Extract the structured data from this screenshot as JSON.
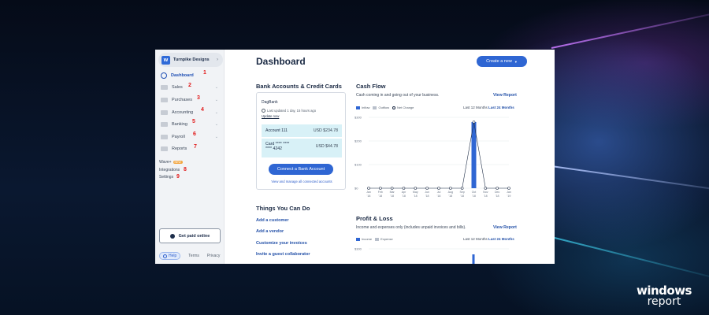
{
  "brand": {
    "line1": "windows",
    "line2": "report"
  },
  "sidebar": {
    "business_name": "Turnpike Designs",
    "items": [
      {
        "label": "Dashboard",
        "num": "1"
      },
      {
        "label": "Sales",
        "num": "2"
      },
      {
        "label": "Purchases",
        "num": "3"
      },
      {
        "label": "Accounting",
        "num": "4"
      },
      {
        "label": "Banking",
        "num": "5"
      },
      {
        "label": "Payroll",
        "num": "6"
      },
      {
        "label": "Reports",
        "num": "7"
      }
    ],
    "wave_plus": "Wave+",
    "wave_badge": "NEW",
    "integrations": "Integrations",
    "integrations_num": "8",
    "settings": "Settings",
    "settings_num": "9",
    "get_paid": "Get paid online",
    "help": "Help",
    "terms": "Terms",
    "privacy": "Privacy"
  },
  "main": {
    "title": "Dashboard",
    "create_new": "Create a new",
    "bank_section_title": "Bank Accounts & Credit Cards",
    "bank": {
      "name": "DagBank",
      "updated": "Last updated 1 day, 15 hours ago",
      "update_now": "Update now",
      "accounts": [
        {
          "name": "Account 111",
          "amount": "USD $234.78"
        },
        {
          "name": "Card **** ****",
          "name2": "**** 4242",
          "amount": "USD $44.78"
        }
      ],
      "connect": "Connect a Bank Account",
      "manage": "View and manage all connected accounts"
    },
    "todo_title": "Things You Can Do",
    "todo": [
      "Add a customer",
      "Add a vendor",
      "Customize your invoices",
      "Invite a guest collaborator"
    ],
    "cash_flow": {
      "title": "Cash Flow",
      "subtitle": "Cash coming in and going out of your business.",
      "view_report": "View Report",
      "range_a": "Last 12 Months",
      "range_b": "Last 24 Months",
      "legend": [
        "Inflow",
        "Outflow",
        "Net Change"
      ]
    },
    "profit_loss": {
      "title": "Profit & Loss",
      "subtitle": "Income and expenses only (includes unpaid invoices and bills).",
      "view_report": "View Report",
      "range_a": "Last 12 Months",
      "range_b": "Last 24 Months",
      "legend": [
        "Income",
        "Expense"
      ]
    }
  },
  "chart_data": [
    {
      "type": "bar",
      "title": "Cash Flow",
      "categories": [
        "Jan '18",
        "Feb '18",
        "Mar '18",
        "Apr '18",
        "May '18",
        "Jun '18",
        "Jul '18",
        "Aug '18",
        "Sep '18",
        "Oct '18",
        "Nov '18",
        "Dec '18",
        "Jan '19"
      ],
      "yticks": [
        "$300",
        "$200",
        "$100",
        "$0"
      ],
      "ylim": [
        0,
        300
      ],
      "series": [
        {
          "name": "Inflow",
          "values": [
            0,
            0,
            0,
            0,
            0,
            0,
            0,
            0,
            0,
            280,
            0,
            0,
            0
          ]
        },
        {
          "name": "Outflow",
          "values": [
            0,
            0,
            0,
            0,
            0,
            0,
            0,
            0,
            0,
            0,
            0,
            0,
            0
          ]
        },
        {
          "name": "Net Change",
          "values": [
            0,
            0,
            0,
            0,
            0,
            0,
            0,
            0,
            0,
            280,
            0,
            0,
            0
          ]
        }
      ],
      "legend": "top-left",
      "colors": {
        "inflow": "#2f66d3",
        "outflow": "#b9c0cb",
        "net": "#1b2a44"
      }
    },
    {
      "type": "bar",
      "title": "Profit & Loss",
      "yticks": [
        "$300"
      ],
      "ylim": [
        0,
        300
      ],
      "series": [
        {
          "name": "Income",
          "values": []
        },
        {
          "name": "Expense",
          "values": []
        }
      ],
      "legend": "top-left"
    }
  ]
}
